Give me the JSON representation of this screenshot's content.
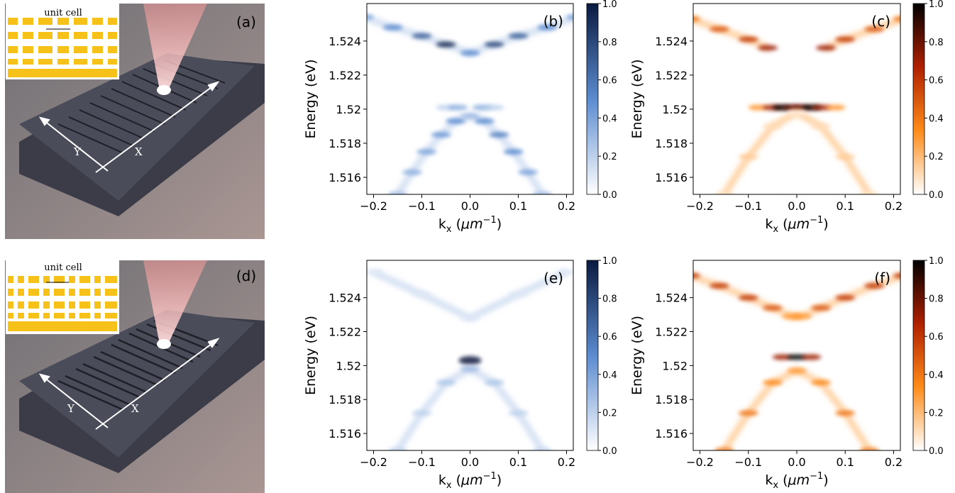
{
  "illustrations": [
    {
      "panel_label": "(a)",
      "inset_label": "unit cell",
      "axis_labels": [
        "Y",
        "X"
      ]
    },
    {
      "panel_label": "(d)",
      "inset_label": "unit cell",
      "axis_labels": [
        "Y",
        "X"
      ]
    }
  ],
  "chart_data": [
    {
      "type": "heatmap",
      "panel_label": "(b)",
      "ylabel": "Energy (eV)",
      "xlabel": [
        "k",
        "x",
        " (",
        "μm",
        "−1",
        ")"
      ],
      "xlim": [
        -0.214,
        0.214
      ],
      "ylim": [
        1.515,
        1.5262
      ],
      "xticks": [
        {
          "value": -0.2,
          "label": "−0.2"
        },
        {
          "value": -0.1,
          "label": "−0.1"
        },
        {
          "value": 0,
          "label": "0.0"
        },
        0.1,
        0.2
      ],
      "yticks": [
        1.516,
        1.518,
        1.52,
        1.522,
        1.524
      ],
      "clim": [
        0,
        1
      ],
      "cticks": [
        {
          "value": 0,
          "label": "0.0"
        },
        0.2,
        0.4,
        0.6,
        0.8,
        {
          "value": 1,
          "label": "1.0"
        }
      ],
      "colormap": [
        "#ffffff",
        "#5b8bd0",
        "#0a1a40"
      ],
      "series": [
        {
          "x": [
            -0.22,
            -0.16,
            -0.1,
            -0.05,
            0,
            0.05,
            0.1,
            0.16,
            0.22
          ],
          "values": [
            1.5254,
            1.5248,
            1.5243,
            1.5238,
            1.5233,
            1.5238,
            1.5243,
            1.5248,
            1.5254
          ],
          "intensity": [
            0.4,
            0.5,
            0.7,
            0.95,
            0.5,
            0.8,
            0.7,
            0.5,
            0.4
          ]
        },
        {
          "x": [
            -0.15,
            -0.12,
            -0.09,
            -0.06,
            -0.03,
            0,
            0.03,
            0.06,
            0.09,
            0.12,
            0.15
          ],
          "values": [
            1.515,
            1.5163,
            1.5175,
            1.5185,
            1.5193,
            1.5196,
            1.5193,
            1.5185,
            1.5175,
            1.5163,
            1.515
          ],
          "intensity": [
            0.3,
            0.35,
            0.4,
            0.45,
            0.5,
            0.3,
            0.5,
            0.55,
            0.5,
            0.4,
            0.3
          ]
        },
        {
          "x": [
            -0.05,
            -0.025,
            0.025,
            0.05
          ],
          "values": [
            1.5201,
            1.5201,
            1.5201,
            1.5201
          ],
          "intensity": [
            0.2,
            0.35,
            0.35,
            0.2
          ]
        }
      ]
    },
    {
      "type": "heatmap",
      "panel_label": "(c)",
      "ylabel": "Energy (eV)",
      "xlabel": [
        "k",
        "x",
        " (",
        "μm",
        "−1",
        ")"
      ],
      "xlim": [
        -0.214,
        0.214
      ],
      "ylim": [
        1.515,
        1.5262
      ],
      "xticks": [
        {
          "value": -0.2,
          "label": "−0.2"
        },
        {
          "value": -0.1,
          "label": "−0.1"
        },
        {
          "value": 0,
          "label": "0.0"
        },
        0.1,
        0.2
      ],
      "yticks": [
        1.516,
        1.518,
        1.52,
        1.522,
        1.524
      ],
      "clim": [
        0,
        1
      ],
      "cticks": [
        {
          "value": 0,
          "label": "0.0"
        },
        0.2,
        0.4,
        0.6,
        0.8,
        {
          "value": 1,
          "label": "1.0"
        }
      ],
      "colormap": [
        "#ffffff",
        "#ff8c1a",
        "#b02000",
        "#000000"
      ],
      "series": [
        {
          "x": [
            -0.22,
            -0.16,
            -0.1,
            -0.06
          ],
          "values": [
            1.5253,
            1.5247,
            1.5241,
            1.5236
          ],
          "intensity": [
            0.4,
            0.5,
            0.6,
            0.7
          ]
        },
        {
          "x": [
            0.06,
            0.1,
            0.16,
            0.22
          ],
          "values": [
            1.5236,
            1.5241,
            1.5247,
            1.5253
          ],
          "intensity": [
            0.7,
            0.6,
            0.5,
            0.4
          ]
        },
        {
          "x": [
            -0.08,
            -0.05,
            -0.03,
            -0.01,
            0.01,
            0.03,
            0.05,
            0.08
          ],
          "values": [
            1.5201,
            1.5201,
            1.5201,
            1.5201,
            1.5201,
            1.5201,
            1.5201,
            1.5201
          ],
          "intensity": [
            0.3,
            0.7,
            1.0,
            0.8,
            0.8,
            1.0,
            0.7,
            0.3
          ]
        },
        {
          "x": [
            -0.15,
            -0.1,
            -0.05,
            0,
            0.05,
            0.1,
            0.15
          ],
          "values": [
            1.515,
            1.5172,
            1.519,
            1.5198,
            1.519,
            1.5172,
            1.515
          ],
          "intensity": [
            0.1,
            0.15,
            0.1,
            0.05,
            0.1,
            0.15,
            0.1
          ]
        }
      ]
    },
    {
      "type": "heatmap",
      "panel_label": "(e)",
      "ylabel": "Energy (eV)",
      "xlabel": [
        "k",
        "x",
        " (",
        "μm",
        "−1",
        ")"
      ],
      "xlim": [
        -0.214,
        0.214
      ],
      "ylim": [
        1.515,
        1.5262
      ],
      "xticks": [
        {
          "value": -0.2,
          "label": "−0.2"
        },
        {
          "value": -0.1,
          "label": "−0.1"
        },
        {
          "value": 0,
          "label": "0.0"
        },
        0.1,
        0.2
      ],
      "yticks": [
        1.516,
        1.518,
        1.52,
        1.522,
        1.524
      ],
      "clim": [
        0,
        1
      ],
      "cticks": [
        {
          "value": 0,
          "label": "0.0"
        },
        0.2,
        0.4,
        0.6,
        0.8,
        {
          "value": 1,
          "label": "1.0"
        }
      ],
      "colormap": [
        "#ffffff",
        "#5b8bd0",
        "#0a1a40"
      ],
      "series": [
        {
          "x": [
            -0.2,
            -0.1,
            0,
            0.1,
            0.2
          ],
          "values": [
            1.5255,
            1.5242,
            1.5228,
            1.5242,
            1.5255
          ],
          "intensity": [
            0.1,
            0.1,
            0.1,
            0.1,
            0.1
          ]
        },
        {
          "x": [
            0
          ],
          "values": [
            1.5203
          ],
          "intensity": [
            1.0
          ]
        },
        {
          "x": [
            -0.15,
            -0.1,
            -0.05,
            0,
            0.05,
            0.1,
            0.15
          ],
          "values": [
            1.515,
            1.5172,
            1.519,
            1.5198,
            1.519,
            1.5172,
            1.515
          ],
          "intensity": [
            0.2,
            0.2,
            0.25,
            0.3,
            0.25,
            0.2,
            0.2
          ]
        }
      ]
    },
    {
      "type": "heatmap",
      "panel_label": "(f)",
      "ylabel": "Energy (eV)",
      "xlabel": [
        "k",
        "x",
        " (",
        "μm",
        "−1",
        ")"
      ],
      "xlim": [
        -0.214,
        0.214
      ],
      "ylim": [
        1.515,
        1.5262
      ],
      "xticks": [
        {
          "value": -0.2,
          "label": "−0.2"
        },
        {
          "value": -0.1,
          "label": "−0.1"
        },
        {
          "value": 0,
          "label": "0.0"
        },
        0.1,
        0.2
      ],
      "yticks": [
        1.516,
        1.518,
        1.52,
        1.522,
        1.524
      ],
      "clim": [
        0,
        1
      ],
      "cticks": [
        {
          "value": 0,
          "label": "0.0"
        },
        0.2,
        0.4,
        0.6,
        0.8,
        {
          "value": 1,
          "label": "1.0"
        }
      ],
      "colormap": [
        "#ffffff",
        "#ff8c1a",
        "#b02000",
        "#000000"
      ],
      "series": [
        {
          "x": [
            -0.22,
            -0.16,
            -0.1,
            -0.05,
            -0.01,
            0.01,
            0.05,
            0.1,
            0.16,
            0.22
          ],
          "values": [
            1.5253,
            1.5247,
            1.524,
            1.5234,
            1.5229,
            1.5229,
            1.5234,
            1.524,
            1.5247,
            1.5253
          ],
          "intensity": [
            0.6,
            0.6,
            0.6,
            0.5,
            0.3,
            0.3,
            0.5,
            0.6,
            0.6,
            0.6
          ]
        },
        {
          "x": [
            -0.03,
            0,
            0.03
          ],
          "values": [
            1.5205,
            1.5205,
            1.5205
          ],
          "intensity": [
            0.7,
            1.0,
            0.7
          ]
        },
        {
          "x": [
            -0.15,
            -0.1,
            -0.05,
            0,
            0.05,
            0.1,
            0.15
          ],
          "values": [
            1.515,
            1.5172,
            1.519,
            1.5197,
            1.519,
            1.5172,
            1.515
          ],
          "intensity": [
            0.4,
            0.4,
            0.35,
            0.3,
            0.35,
            0.4,
            0.4
          ]
        }
      ]
    }
  ]
}
